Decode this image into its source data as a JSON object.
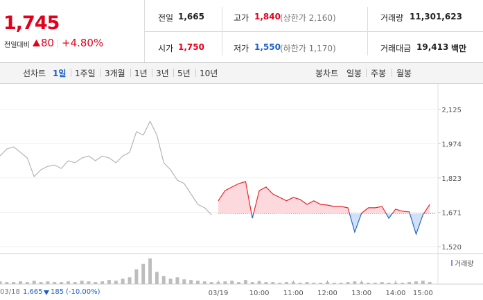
{
  "quote": {
    "price": "1,745",
    "change_label": "전일대비",
    "change": "80",
    "change_pct": "+4.80%"
  },
  "stats": [
    {
      "label": "전일",
      "value": "1,665"
    },
    {
      "label": "고가",
      "value": "1,840",
      "note": "(상한가 2,160)"
    },
    {
      "label": "거래량",
      "value": "11,301,623"
    },
    {
      "label": "시가",
      "value": "1,750"
    },
    {
      "label": "저가",
      "value": "1,550",
      "note": "(하한가 1,170)"
    },
    {
      "label": "거래대금",
      "value": "19,413",
      "unit": "백만"
    }
  ],
  "tabs": {
    "line_label": "선차트",
    "line_periods": [
      "1일",
      "1주일",
      "3개월",
      "1년",
      "3년",
      "5년",
      "10년"
    ],
    "selected": 0,
    "candle_label": "봉차트",
    "candle_periods": [
      "일봉",
      "주봉",
      "월봉"
    ]
  },
  "chart_data": {
    "type": "line",
    "x": [
      0,
      1,
      2,
      3,
      4,
      5,
      6,
      7,
      8,
      9,
      10,
      11,
      12,
      13,
      14,
      15,
      16,
      17,
      18,
      19,
      20,
      21,
      22,
      23,
      24,
      25,
      26,
      27,
      28,
      29,
      30,
      31,
      32,
      33,
      34,
      35,
      36,
      37,
      38,
      39,
      40,
      41,
      42,
      43,
      44,
      45,
      46,
      47,
      48,
      49,
      50,
      51,
      52,
      53,
      54,
      55,
      56,
      57,
      58,
      59,
      60,
      61,
      62,
      63
    ],
    "xlim": [
      0,
      64
    ],
    "xticks": [
      {
        "value": 32,
        "label": "03/19"
      },
      {
        "value": 38,
        "label": "10:00"
      },
      {
        "value": 43,
        "label": "11:00"
      },
      {
        "value": 48,
        "label": "12:00"
      },
      {
        "value": 53,
        "label": "13:00"
      },
      {
        "value": 58,
        "label": "14:00"
      },
      {
        "value": 62,
        "label": "15:00"
      }
    ],
    "ylim": [
      1492,
      2217
    ],
    "yticks": [
      {
        "value": 2125,
        "label": "2,125"
      },
      {
        "value": 1974,
        "label": "1,974"
      },
      {
        "value": 1823,
        "label": "1,823"
      },
      {
        "value": 1671,
        "label": "1,671"
      },
      {
        "value": 1520,
        "label": "1,520"
      }
    ],
    "grid": true,
    "baseline": 1665,
    "series": [
      {
        "color": "#b5b5b5",
        "values": [
          1920,
          1951,
          1960,
          1936,
          1911,
          1829,
          1859,
          1874,
          1880,
          1865,
          1899,
          1890,
          1911,
          1920,
          1899,
          1920,
          1911,
          1890,
          1920,
          1936,
          2027,
          2012,
          2073,
          2012,
          1890,
          1859,
          1813,
          1798,
          1752,
          1706,
          1691,
          1660,
          null,
          null,
          null,
          null,
          null,
          null,
          null,
          null,
          null,
          null,
          null,
          null,
          null,
          null,
          null,
          null,
          null,
          null,
          null,
          null,
          null,
          null,
          null,
          null,
          null,
          null,
          null,
          null,
          null,
          null,
          null,
          null
        ]
      },
      {
        "color": "#e8262f",
        "down_color": "#2a62c9",
        "fill": "#fbd9dc",
        "down_fill": "#cfe0f7",
        "values": [
          null,
          null,
          null,
          null,
          null,
          null,
          null,
          null,
          null,
          null,
          null,
          null,
          null,
          null,
          null,
          null,
          null,
          null,
          null,
          null,
          null,
          null,
          null,
          null,
          null,
          null,
          null,
          null,
          null,
          null,
          null,
          null,
          1722,
          1767,
          1783,
          1798,
          1807,
          1645,
          1767,
          1783,
          1752,
          1737,
          1722,
          1737,
          1728,
          1706,
          1722,
          1706,
          1703,
          1697,
          1697,
          1691,
          1584,
          1667,
          1691,
          1691,
          1697,
          1645,
          1685,
          1676,
          1673,
          1575,
          1660,
          1706
        ]
      }
    ],
    "volume": {
      "name": "거래량",
      "color": "#bdbdbd",
      "legend_color": "#9a84d6",
      "values": [
        4,
        3,
        3,
        4,
        3,
        5,
        3,
        4,
        3,
        3,
        4,
        3,
        5,
        4,
        3,
        4,
        6,
        5,
        8,
        10,
        22,
        30,
        38,
        18,
        12,
        8,
        10,
        7,
        6,
        5,
        4,
        3,
        3,
        4,
        5,
        3,
        6,
        3,
        4,
        3,
        3,
        2,
        3,
        3,
        2,
        3,
        2,
        2,
        3,
        2,
        2,
        3,
        4,
        3,
        2,
        2,
        3,
        2,
        2,
        2,
        3,
        4,
        5,
        3
      ]
    }
  },
  "footer": {
    "date": "03/18",
    "close": "1,665",
    "change": "185",
    "change_pct": "(-10.00%)"
  }
}
